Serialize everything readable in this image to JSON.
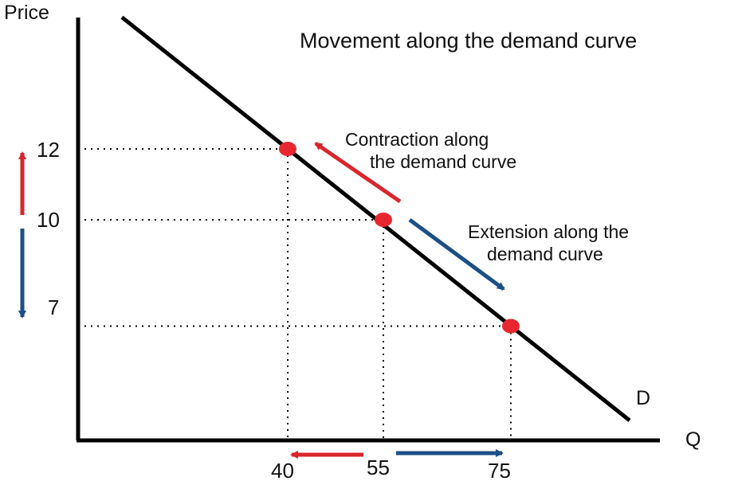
{
  "chart_data": {
    "type": "line",
    "title": "Movement along the demand curve",
    "ylabel": "Price",
    "xlabel": "Q",
    "grid": false,
    "curve_label": "D",
    "points": [
      {
        "q": 40,
        "price": 12
      },
      {
        "q": 55,
        "price": 10
      },
      {
        "q": 75,
        "price": 7
      }
    ],
    "x_ticks": [
      "40",
      "55",
      "75"
    ],
    "y_ticks": [
      "12",
      "10",
      "7"
    ],
    "annotations": {
      "contraction": [
        "Contraction along",
        "the demand curve"
      ],
      "extension": [
        "Extension along the",
        "demand curve"
      ]
    },
    "colors": {
      "axis": "#000000",
      "curve": "#000000",
      "points": "#e8262f",
      "contraction": "#d9262c",
      "extension": "#1c4f86",
      "guides": "#000000"
    }
  }
}
